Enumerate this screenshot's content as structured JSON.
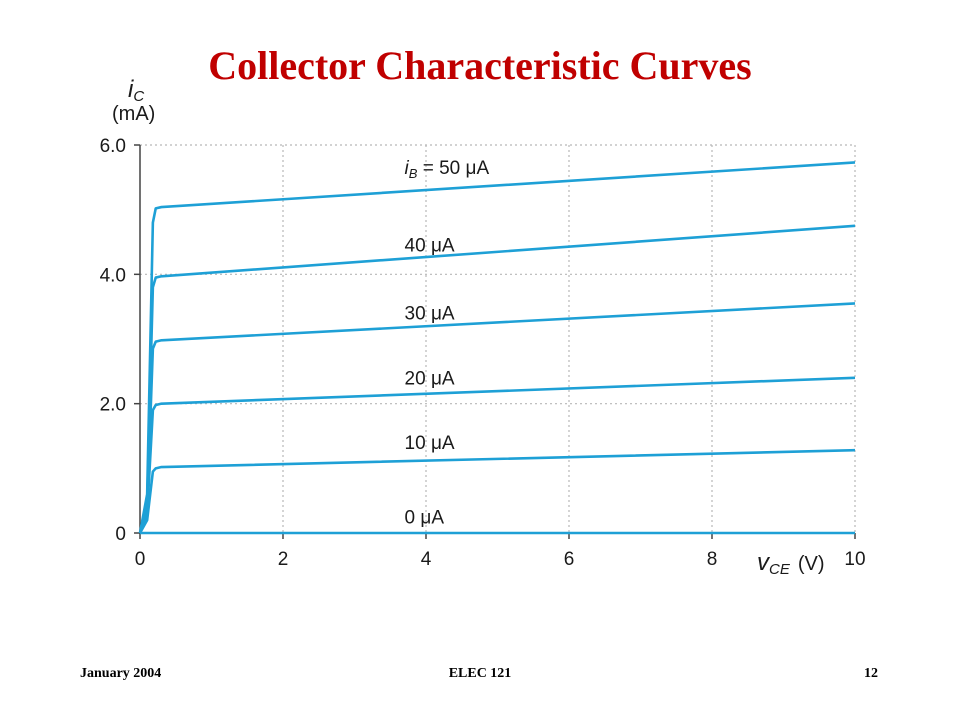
{
  "slide": {
    "title": "Collector Characteristic Curves",
    "footer_left": "January 2004",
    "footer_center": "ELEC 121",
    "footer_right": "12"
  },
  "colors": {
    "title": "#c00000",
    "curve": "#1ea0d6",
    "grid": "#b8b8b8",
    "axis": "#444444"
  },
  "chart_data": {
    "type": "line",
    "title": "",
    "xlabel": {
      "base": "v",
      "sub": "CE",
      "unit": "(V)"
    },
    "ylabel": {
      "base": "i",
      "sub": "C",
      "unit": "(mA)"
    },
    "xlim": [
      0,
      10
    ],
    "ylim": [
      0,
      6
    ],
    "x_ticks": [
      0,
      2,
      4,
      6,
      8,
      10
    ],
    "x_tick_labels": [
      "0",
      "2",
      "4",
      "6",
      "8",
      "10"
    ],
    "y_ticks": [
      0,
      2,
      4,
      6
    ],
    "y_tick_labels": [
      "0",
      "2.0",
      "4.0",
      "6.0"
    ],
    "grid": true,
    "series": [
      {
        "name": "i_B = 50 μA",
        "label_base": "i",
        "label_sub": "B",
        "label_rest": " = 50 μA",
        "x": [
          0,
          0.1,
          0.18,
          0.22,
          0.3,
          10
        ],
        "y": [
          0,
          0.6,
          4.8,
          5.02,
          5.04,
          5.73
        ]
      },
      {
        "name": "40 μA",
        "label_rest": "40 μA",
        "x": [
          0,
          0.1,
          0.18,
          0.22,
          0.3,
          10
        ],
        "y": [
          0,
          0.5,
          3.8,
          3.95,
          3.97,
          4.75
        ]
      },
      {
        "name": "30 μA",
        "label_rest": "30 μA",
        "x": [
          0,
          0.1,
          0.18,
          0.22,
          0.3,
          10
        ],
        "y": [
          0,
          0.4,
          2.85,
          2.96,
          2.98,
          3.55
        ]
      },
      {
        "name": "20 μA",
        "label_rest": "20 μA",
        "x": [
          0,
          0.1,
          0.18,
          0.22,
          0.3,
          10
        ],
        "y": [
          0,
          0.3,
          1.9,
          1.98,
          2.0,
          2.4
        ]
      },
      {
        "name": "10 μA",
        "label_rest": "10 μA",
        "x": [
          0,
          0.1,
          0.18,
          0.22,
          0.3,
          10
        ],
        "y": [
          0,
          0.2,
          0.95,
          1.0,
          1.02,
          1.28
        ]
      },
      {
        "name": "0 μA",
        "label_rest": "0 μA",
        "x": [
          0,
          10
        ],
        "y": [
          0,
          0
        ]
      }
    ],
    "label_positions_data": [
      {
        "x": 3.7,
        "y": 5.55
      },
      {
        "x": 3.7,
        "y": 4.35
      },
      {
        "x": 3.7,
        "y": 3.3
      },
      {
        "x": 3.7,
        "y": 2.3
      },
      {
        "x": 3.7,
        "y": 1.3
      },
      {
        "x": 3.7,
        "y": 0.15
      }
    ]
  }
}
